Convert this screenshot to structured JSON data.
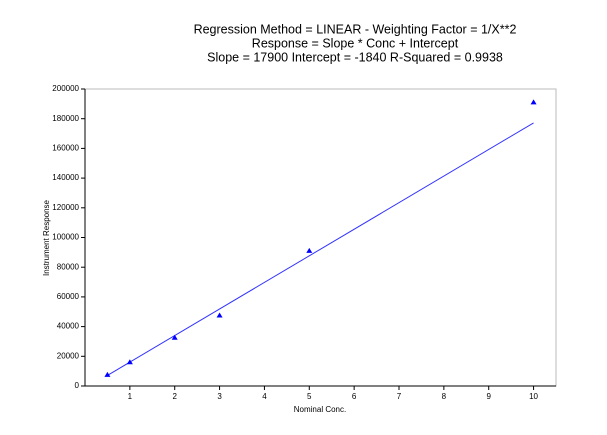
{
  "chart_data": {
    "type": "scatter",
    "title": [
      "Regression Method = LINEAR - Weighting Factor = 1/X**2",
      "Response = Slope * Conc + Intercept",
      "Slope = 17900 Intercept = -1840 R-Squared = 0.9938"
    ],
    "xlabel": "Nominal Conc.",
    "ylabel": "Instrument Response",
    "points": {
      "color": "#0000ff",
      "x": [
        0.5,
        1,
        2,
        3,
        5,
        10
      ],
      "values": [
        7500,
        16000,
        32500,
        47500,
        91000,
        191000
      ]
    },
    "fit": {
      "color": "#3333ff",
      "x": [
        0.5,
        10
      ],
      "values": [
        7110,
        177160
      ]
    },
    "xlim": [
      0,
      10.5
    ],
    "xticks": [
      1,
      2,
      3,
      4,
      5,
      6,
      7,
      8,
      9,
      10
    ],
    "ylim": [
      0,
      200000
    ],
    "yticks": [
      0,
      20000,
      40000,
      60000,
      80000,
      100000,
      120000,
      140000,
      160000,
      180000,
      200000
    ]
  }
}
